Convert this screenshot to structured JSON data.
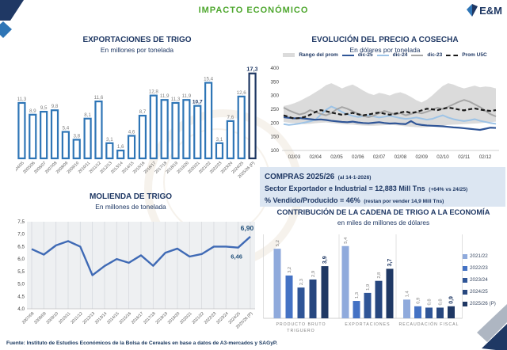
{
  "header": {
    "title": "IMPACTO ECONÓMICO",
    "logo_text": "E&M"
  },
  "footer": {
    "source": "Fuente: Instituto de Estudios Económicos de la Bolsa de Cereales en base a datos de A3-mercados y SAGyP."
  },
  "compras_box": {
    "line1_main": "COMPRAS 2025/26",
    "line1_note": "(al  14-1-2026)",
    "line2_main": "Sector Exportador e Industrial =  12,883 Mill Tns",
    "line2_note": "(+64% vs 24/25)",
    "line3_main": "% Vendido/Producido = 46%",
    "line3_note": "(restan por vender 14,9 Mill Tns)"
  },
  "colors": {
    "accent_green": "#4ea72e",
    "navy": "#1f3864",
    "bar_blue": "#2e75b6",
    "line_blue": "#3f6ab5",
    "box_bg": "#dce6f2",
    "band_gray": "#dbdbdb"
  },
  "chart_data": [
    {
      "id": "exportaciones",
      "type": "bar",
      "title": "EXPORTACIONES DE TRIGO",
      "subtitle": "En millones por tonelada",
      "categories": [
        "2004/05",
        "2005/06",
        "2006/07",
        "2007/08",
        "2008/09",
        "2009/10",
        "2010/11",
        "2011/12",
        "2012/13",
        "2013/14",
        "2014/15",
        "2015/16",
        "2016/17",
        "2017/18",
        "2018/19",
        "2019/20",
        "2020/21",
        "2021/22",
        "2022/23",
        "2023/24",
        "2024/25",
        "2025/26 (P)"
      ],
      "values": [
        11.3,
        8.9,
        9.5,
        9.8,
        5.4,
        3.8,
        8.1,
        11.6,
        3.1,
        1.6,
        4.6,
        8.7,
        12.8,
        11.9,
        11.3,
        11.9,
        10.7,
        15.4,
        3.1,
        7.6,
        12.6,
        17.3
      ],
      "value_labels": [
        "11,3",
        "8,9",
        "9,5",
        "9,8",
        "5,4",
        "3,8",
        "8,1",
        "11,6",
        "3,1",
        "1,6",
        "4,6",
        "8,7",
        "12,8",
        "11,9",
        "11,3",
        "11,9",
        "10,7",
        "15,4",
        "3,1",
        "7,6",
        "12,6",
        "17,3"
      ],
      "highlight_indices": [
        16,
        21
      ],
      "bar_color": "#2e75b6",
      "last_bar_color": "#1f3864",
      "label_color": "#7f7f7f",
      "highlight_color": "#1f3864",
      "ylim": [
        0,
        18
      ]
    },
    {
      "id": "precio",
      "type": "line",
      "title": "EVOLUCIÓN DEL PRECIO A COSECHA",
      "subtitle": "En dólares por tonelada",
      "ylim": [
        100,
        400
      ],
      "y_ticks": [
        400,
        350,
        300,
        250,
        200,
        150,
        100
      ],
      "x_ticks": [
        "02/03",
        "02/04",
        "02/05",
        "02/06",
        "02/07",
        "02/08",
        "02/09",
        "02/10",
        "02/11",
        "02/12"
      ],
      "legend_items": [
        {
          "label": "Rango del prom",
          "kind": "band",
          "color": "#dbdbdb"
        },
        {
          "label": "dic-25",
          "kind": "line",
          "color": "#2f5597"
        },
        {
          "label": "dic-24",
          "kind": "line",
          "color": "#9dc3e6"
        },
        {
          "label": "dic-23",
          "kind": "line",
          "color": "#a6a6a6"
        },
        {
          "label": "Prom U5C",
          "kind": "dashed",
          "color": "#1a1a1a"
        }
      ],
      "band": {
        "name": "Rango del prom",
        "upper": [
          262,
          266,
          272,
          280,
          290,
          300,
          312,
          324,
          338,
          345,
          336,
          326,
          334,
          340,
          330,
          318,
          308,
          302,
          310,
          306,
          300,
          308,
          312,
          305,
          295,
          283,
          275,
          285,
          300,
          318,
          335,
          345,
          340,
          332,
          326,
          331,
          336,
          330,
          333,
          331,
          326
        ],
        "lower": [
          204,
          201,
          199,
          197,
          196,
          197,
          199,
          201,
          202,
          200,
          198,
          196,
          195,
          194,
          192,
          191,
          190,
          190,
          191,
          192,
          193,
          192,
          190,
          188,
          186,
          185,
          184,
          185,
          187,
          189,
          191,
          193,
          194,
          195,
          196,
          197,
          198,
          199,
          201,
          203,
          205
        ]
      },
      "series": [
        {
          "name": "dic-24",
          "color": "#9dc3e6",
          "style": "solid",
          "width": 2,
          "values": [
            196,
            193,
            195,
            198,
            202,
            206,
            212,
            230,
            248,
            260,
            252,
            240,
            232,
            226,
            222,
            225,
            228,
            224,
            220,
            223,
            226,
            222,
            218,
            215,
            217,
            220,
            216,
            212,
            215,
            222,
            228,
            220,
            214,
            210,
            207,
            210,
            214,
            208,
            204,
            200,
            197
          ]
        },
        {
          "name": "dic-23",
          "color": "#a6a6a6",
          "style": "solid",
          "width": 2,
          "values": [
            256,
            246,
            238,
            231,
            236,
            247,
            240,
            233,
            228,
            236,
            250,
            258,
            252,
            243,
            234,
            226,
            221,
            227,
            236,
            244,
            238,
            231,
            236,
            228,
            233,
            239,
            235,
            241,
            248,
            256,
            251,
            259,
            268,
            277,
            284,
            278,
            268,
            258,
            245,
            232,
            224
          ]
        },
        {
          "name": "dic-25",
          "color": "#2f5597",
          "style": "solid",
          "width": 2.2,
          "values": [
            221,
            219,
            217,
            218,
            216,
            214,
            212,
            213,
            211,
            208,
            206,
            204,
            203,
            205,
            202,
            200,
            199,
            201,
            203,
            200,
            198,
            199,
            197,
            196,
            207,
            196,
            193,
            191,
            190,
            189,
            188,
            186,
            184,
            183,
            181,
            179,
            177,
            175,
            179,
            183,
            182
          ]
        },
        {
          "name": "Prom U5C",
          "color": "#1a1a1a",
          "style": "dashed",
          "width": 2.2,
          "values": [
            228,
            222,
            216,
            218,
            222,
            230,
            240,
            247,
            243,
            238,
            234,
            230,
            233,
            237,
            232,
            228,
            231,
            235,
            238,
            234,
            230,
            234,
            238,
            242,
            236,
            240,
            246,
            252,
            250,
            247,
            252,
            256,
            253,
            249,
            246,
            250,
            253,
            249,
            246,
            244,
            247
          ]
        }
      ]
    },
    {
      "id": "molienda",
      "type": "line",
      "title": "MOLIENDA DE TRIGO",
      "subtitle": "En millones de tonelada",
      "categories": [
        "2007/08",
        "2008/09",
        "2009/10",
        "2010/11",
        "2011/12",
        "2012/13",
        "2013/14",
        "2014/15",
        "2015/16",
        "2016/17",
        "2017/18",
        "2018/19",
        "2019/20",
        "2020/21",
        "2021/22",
        "2022/23",
        "2023/24",
        "2024/25",
        "2025/26 (P)"
      ],
      "values": [
        6.4,
        6.18,
        6.55,
        6.72,
        6.5,
        5.35,
        5.72,
        6.0,
        5.85,
        6.15,
        5.73,
        6.25,
        6.42,
        6.1,
        6.2,
        6.5,
        6.5,
        6.46,
        6.9
      ],
      "ylim": [
        4.0,
        7.5
      ],
      "y_tick_labels": [
        "7,5",
        "7,0",
        "6,5",
        "6,0",
        "5,5",
        "5,0",
        "4,5",
        "4,0"
      ],
      "y_tick_values": [
        7.5,
        7.0,
        6.5,
        6.0,
        5.5,
        5.0,
        4.5,
        4.0
      ],
      "line_color": "#3f6ab5",
      "annotations": [
        {
          "index": 17,
          "label": "6,46",
          "bold": true,
          "placement": "below"
        },
        {
          "index": 18,
          "label": "6,90",
          "bold": true,
          "placement": "above"
        }
      ]
    },
    {
      "id": "contribucion",
      "type": "bar",
      "title": "CONTRIBUCIÓN DE LA CADENA DE TRIGO A LA ECONOMÍA",
      "subtitle": "en miles de millones de dólares",
      "legend": [
        "2021/22",
        "2022/23",
        "2023/24",
        "2024/25",
        "2025/26 (P)"
      ],
      "series_colors": [
        "#8faadc",
        "#4472c4",
        "#2f5597",
        "#27477f",
        "#1f3864"
      ],
      "ylim": [
        0,
        5.6
      ],
      "groups": [
        {
          "label_lines": [
            "PRODUCTO BRUTO",
            "TRIGUERO"
          ],
          "values": [
            5.2,
            3.2,
            2.3,
            2.9,
            3.9
          ],
          "labels": [
            "5,2",
            "3,2",
            "2,3",
            "2,9",
            "3,9"
          ]
        },
        {
          "label_lines": [
            "EXPORTACIONES"
          ],
          "values": [
            5.4,
            1.3,
            1.9,
            2.8,
            3.7
          ],
          "labels": [
            "5,4",
            "1,3",
            "1,9",
            "2,8",
            "3,7"
          ]
        },
        {
          "label_lines": [
            "RECAUDACIÓN FISCAL"
          ],
          "values": [
            1.4,
            0.9,
            0.8,
            0.8,
            0.9
          ],
          "labels": [
            "1,4",
            "0,9",
            "0,8",
            "0,8",
            "0,9"
          ]
        }
      ],
      "label_color": "#808080",
      "highlight_color": "#1f3864"
    }
  ]
}
